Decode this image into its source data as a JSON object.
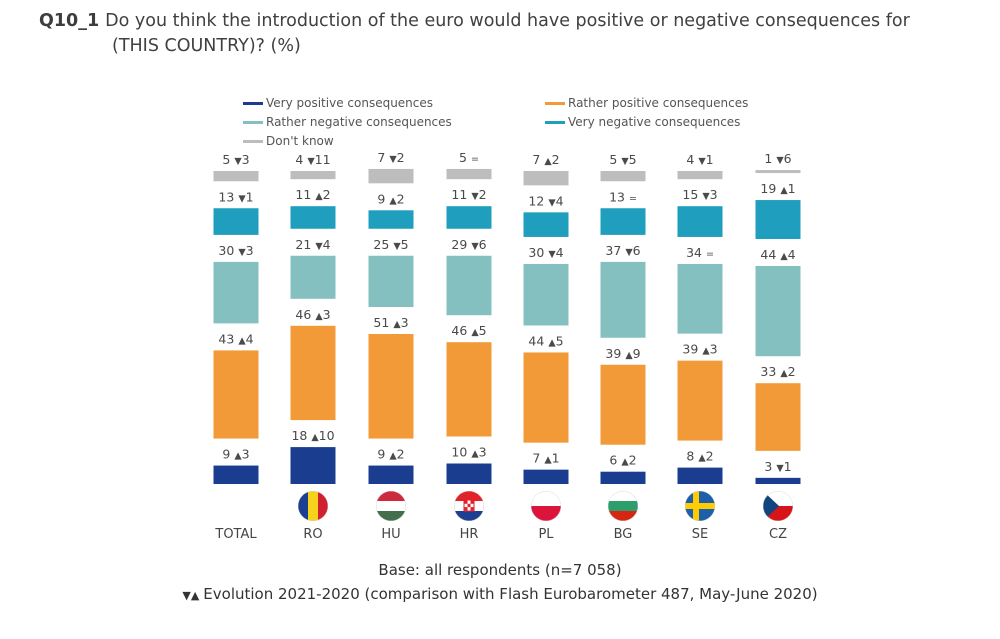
{
  "question": {
    "id": "Q10_1",
    "text_line1": "Do you think the introduction of the euro would have positive or negative consequences for",
    "text_line2": "(THIS COUNTRY)? (%)"
  },
  "legend": [
    {
      "label": "Very positive consequences",
      "color": "#1b3d8f"
    },
    {
      "label": "Rather positive consequences",
      "color": "#f39a38"
    },
    {
      "label": "Rather negative consequences",
      "color": "#85c0c0"
    },
    {
      "label": "Very negative consequences",
      "color": "#1f9ebd"
    },
    {
      "label": "Don't know",
      "color": "#bdbdbd"
    }
  ],
  "footer": {
    "base": "Base: all respondents (n=7 058)",
    "evolution_symbols": "▼▲",
    "evolution": "Evolution 2021-2020 (comparison with Flash Eurobarometer 487, May-June 2020)"
  },
  "chart_data": {
    "type": "bar",
    "stacked": true,
    "categories": [
      "TOTAL",
      "RO",
      "HU",
      "HR",
      "PL",
      "BG",
      "SE",
      "CZ"
    ],
    "flags": [
      null,
      "RO",
      "HU",
      "HR",
      "PL",
      "BG",
      "SE",
      "CZ"
    ],
    "series": [
      {
        "name": "Very positive consequences",
        "color": "#1b3d8f",
        "values": [
          9,
          18,
          9,
          10,
          7,
          6,
          8,
          3
        ],
        "evolution": [
          3,
          10,
          2,
          3,
          1,
          2,
          2,
          -1
        ]
      },
      {
        "name": "Rather positive consequences",
        "color": "#f39a38",
        "values": [
          43,
          46,
          51,
          46,
          44,
          39,
          39,
          33
        ],
        "evolution": [
          4,
          3,
          3,
          5,
          5,
          9,
          3,
          2
        ]
      },
      {
        "name": "Rather negative consequences",
        "color": "#85c0c0",
        "values": [
          30,
          21,
          25,
          29,
          30,
          37,
          34,
          44
        ],
        "evolution": [
          -3,
          -4,
          -5,
          -6,
          -4,
          -6,
          0,
          4
        ]
      },
      {
        "name": "Very negative consequences",
        "color": "#1f9ebd",
        "values": [
          13,
          11,
          9,
          11,
          12,
          13,
          15,
          19
        ],
        "evolution": [
          -1,
          2,
          2,
          -2,
          -4,
          0,
          -3,
          1
        ]
      },
      {
        "name": "Don't know",
        "color": "#bdbdbd",
        "values": [
          5,
          4,
          7,
          5,
          7,
          5,
          4,
          1
        ],
        "evolution": [
          -3,
          -11,
          -2,
          0,
          2,
          -5,
          -1,
          -6
        ]
      }
    ]
  }
}
